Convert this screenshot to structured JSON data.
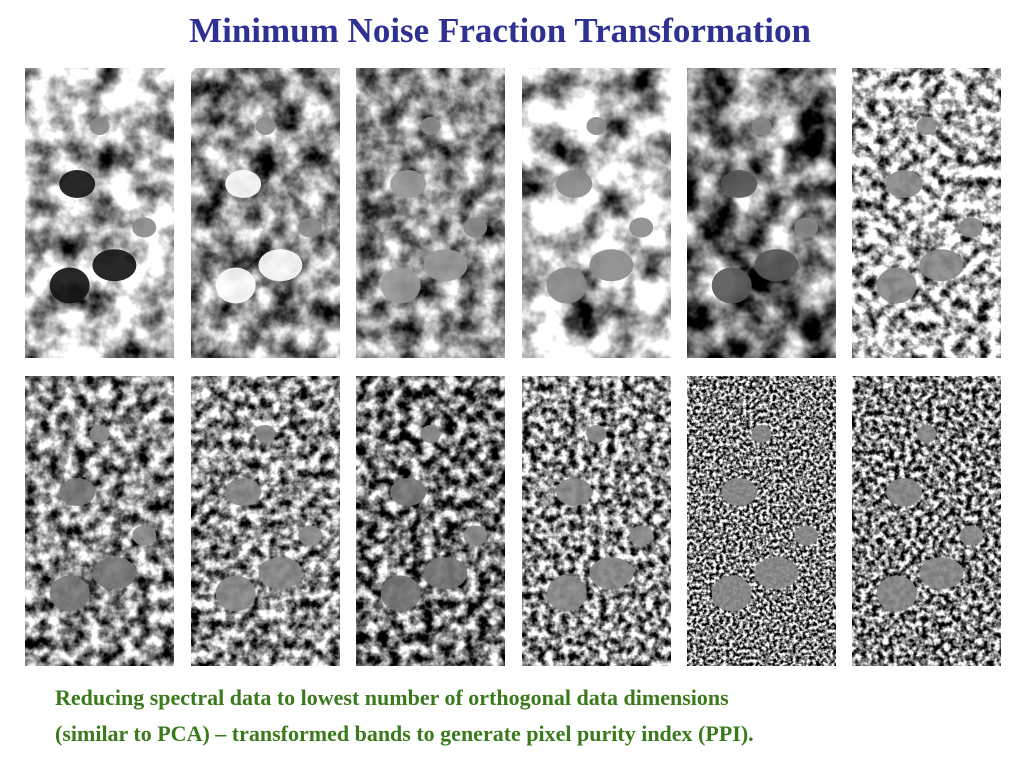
{
  "title": "Minimum Noise Fraction Transformation",
  "caption": {
    "lines": [
      "Reducing spectral data to lowest number of orthogonal data dimensions",
      "(similar to PCA) – transformed bands to generate pixel purity index (PPI)."
    ]
  }
}
